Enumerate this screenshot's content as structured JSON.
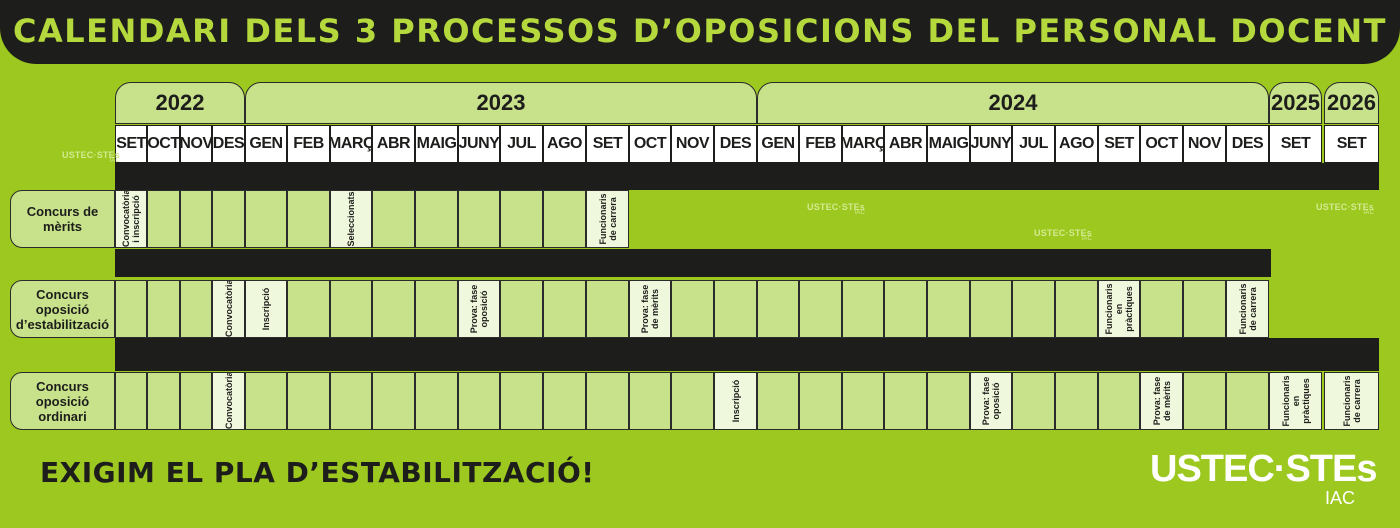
{
  "title": "CALENDARI DELS 3 PROCESSOS D’OPOSICIONS DEL PERSONAL DOCENT",
  "years": [
    {
      "label": "2022",
      "months": [
        "SET",
        "OCT",
        "NOV",
        "DES"
      ]
    },
    {
      "label": "2023",
      "months": [
        "GEN",
        "FEB",
        "MARÇ",
        "ABR",
        "MAIG",
        "JUNY",
        "JUL",
        "AGO",
        "SET",
        "OCT",
        "NOV",
        "DES"
      ]
    },
    {
      "label": "2024",
      "months": [
        "GEN",
        "FEB",
        "MARÇ",
        "ABR",
        "MAIG",
        "JUNY",
        "JUL",
        "AGO",
        "SET",
        "OCT",
        "NOV",
        "DES"
      ]
    },
    {
      "label": "2025",
      "months": [
        "SET"
      ]
    },
    {
      "label": "2026",
      "months": [
        "SET"
      ]
    }
  ],
  "processes": [
    {
      "label": "Concurs de mèrits",
      "events": [
        {
          "month_index": 0,
          "text": "Convocatòria i inscripció"
        },
        {
          "month_index": 6,
          "text": "Seleccionats"
        },
        {
          "month_index": 12,
          "text": "Funcionaris de carrera"
        }
      ]
    },
    {
      "label": "Concurs oposició d’estabilització",
      "events": [
        {
          "month_index": 3,
          "text": "Convocatòria"
        },
        {
          "month_index": 4,
          "text": "Inscripció"
        },
        {
          "month_index": 9,
          "text": "Prova: fase oposició"
        },
        {
          "month_index": 13,
          "text": "Prova: fase de mèrits"
        },
        {
          "month_index": 24,
          "text": "Funcionaris en pràctiques"
        },
        {
          "month_index": 27,
          "text": "Funcionaris de carrera"
        }
      ]
    },
    {
      "label": "Concurs oposició ordinari",
      "events": [
        {
          "month_index": 3,
          "text": "Convocatòria"
        },
        {
          "month_index": 15,
          "text": "Inscripció"
        },
        {
          "month_index": 21,
          "text": "Prova: fase oposició"
        },
        {
          "month_index": 25,
          "text": "Prova: fase de mèrits"
        },
        {
          "month_index": 28,
          "text": "Funcionaris en pràctiques"
        },
        {
          "month_index": 29,
          "text": "Funcionaris de carrera"
        }
      ]
    }
  ],
  "watermark": {
    "text": "USTEC·STEs",
    "sub": "IAC"
  },
  "slogan": "EXIGIM EL PLA D’ESTABILITZACIÓ!",
  "logo": {
    "text": "USTEC·STEs",
    "sub": "IAC"
  }
}
